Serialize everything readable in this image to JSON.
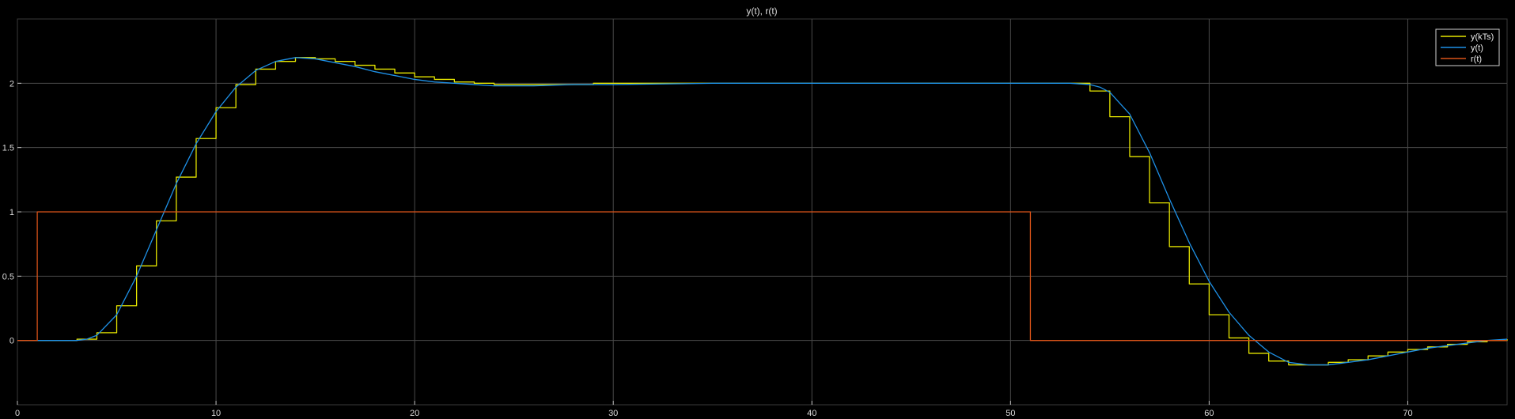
{
  "chart_data": {
    "type": "line",
    "title": "y(t), r(t)",
    "xlabel": "",
    "ylabel": "",
    "xlim": [
      0,
      75
    ],
    "ylim": [
      -0.5,
      2.5
    ],
    "xticks": [
      0,
      10,
      20,
      30,
      40,
      50,
      60,
      70
    ],
    "yticks": [
      0,
      0.5,
      1,
      1.5,
      2
    ],
    "xtick_labels": [
      "0",
      "10",
      "20",
      "30",
      "40",
      "50",
      "60",
      "70"
    ],
    "ytick_labels": [
      "0",
      "0.5",
      "1",
      "1.5",
      "2"
    ],
    "grid": true,
    "legend_position": "top-right",
    "background": "#000000",
    "series": [
      {
        "name": "y(kTs)",
        "color": "#e6e600",
        "style": "step",
        "x": [
          0,
          1,
          2,
          3,
          4,
          5,
          6,
          7,
          8,
          9,
          10,
          11,
          12,
          13,
          14,
          15,
          16,
          17,
          18,
          19,
          20,
          21,
          22,
          23,
          24,
          25,
          26,
          27,
          28,
          29,
          30,
          31,
          32,
          33,
          34,
          35,
          36,
          37,
          38,
          39,
          40,
          41,
          42,
          43,
          44,
          45,
          46,
          47,
          48,
          49,
          50,
          51,
          52,
          53,
          54,
          55,
          56,
          57,
          58,
          59,
          60,
          61,
          62,
          63,
          64,
          65,
          66,
          67,
          68,
          69,
          70,
          71,
          72,
          73,
          74,
          75
        ],
        "values": [
          0,
          0,
          0,
          0.01,
          0.06,
          0.27,
          0.58,
          0.93,
          1.27,
          1.57,
          1.81,
          1.99,
          2.11,
          2.17,
          2.2,
          2.19,
          2.17,
          2.14,
          2.11,
          2.08,
          2.05,
          2.03,
          2.01,
          2.0,
          1.99,
          1.99,
          1.99,
          1.99,
          1.99,
          2.0,
          2.0,
          2.0,
          2.0,
          2.0,
          2.0,
          2.0,
          2.0,
          2.0,
          2.0,
          2.0,
          2.0,
          2.0,
          2.0,
          2.0,
          2.0,
          2.0,
          2.0,
          2.0,
          2.0,
          2.0,
          2.0,
          2.0,
          2.0,
          2.0,
          1.94,
          1.74,
          1.43,
          1.07,
          0.73,
          0.44,
          0.2,
          0.02,
          -0.1,
          -0.16,
          -0.19,
          -0.19,
          -0.17,
          -0.15,
          -0.12,
          -0.09,
          -0.07,
          -0.05,
          -0.03,
          -0.01,
          0.0,
          0.01
        ]
      },
      {
        "name": "y(t)",
        "color": "#1e90e6",
        "style": "line",
        "x": [
          0,
          1,
          2,
          3,
          3.5,
          4,
          5,
          6,
          7,
          8,
          9,
          10,
          11,
          12,
          13,
          14,
          15,
          16,
          17,
          18,
          19,
          20,
          21,
          22,
          23,
          24,
          25,
          26,
          28,
          30,
          35,
          40,
          45,
          50,
          52,
          53,
          54,
          54.5,
          55,
          56,
          57,
          58,
          59,
          60,
          61,
          62,
          63,
          64,
          65,
          66,
          67,
          68,
          69,
          70,
          71,
          72,
          73,
          74,
          75
        ],
        "values": [
          0,
          0,
          0,
          0,
          0.01,
          0.04,
          0.2,
          0.5,
          0.86,
          1.22,
          1.53,
          1.78,
          1.97,
          2.1,
          2.17,
          2.2,
          2.19,
          2.16,
          2.13,
          2.09,
          2.06,
          2.03,
          2.01,
          2.0,
          1.99,
          1.98,
          1.98,
          1.98,
          1.99,
          1.99,
          2.0,
          2.0,
          2.0,
          2.0,
          2.0,
          2.0,
          1.99,
          1.97,
          1.93,
          1.76,
          1.46,
          1.1,
          0.76,
          0.46,
          0.22,
          0.04,
          -0.09,
          -0.17,
          -0.19,
          -0.19,
          -0.17,
          -0.15,
          -0.12,
          -0.09,
          -0.06,
          -0.04,
          -0.02,
          0.0,
          0.01
        ]
      },
      {
        "name": "r(t)",
        "color": "#d95319",
        "style": "step",
        "x": [
          0,
          1,
          51,
          75
        ],
        "values": [
          0,
          1,
          0,
          0
        ]
      }
    ]
  }
}
